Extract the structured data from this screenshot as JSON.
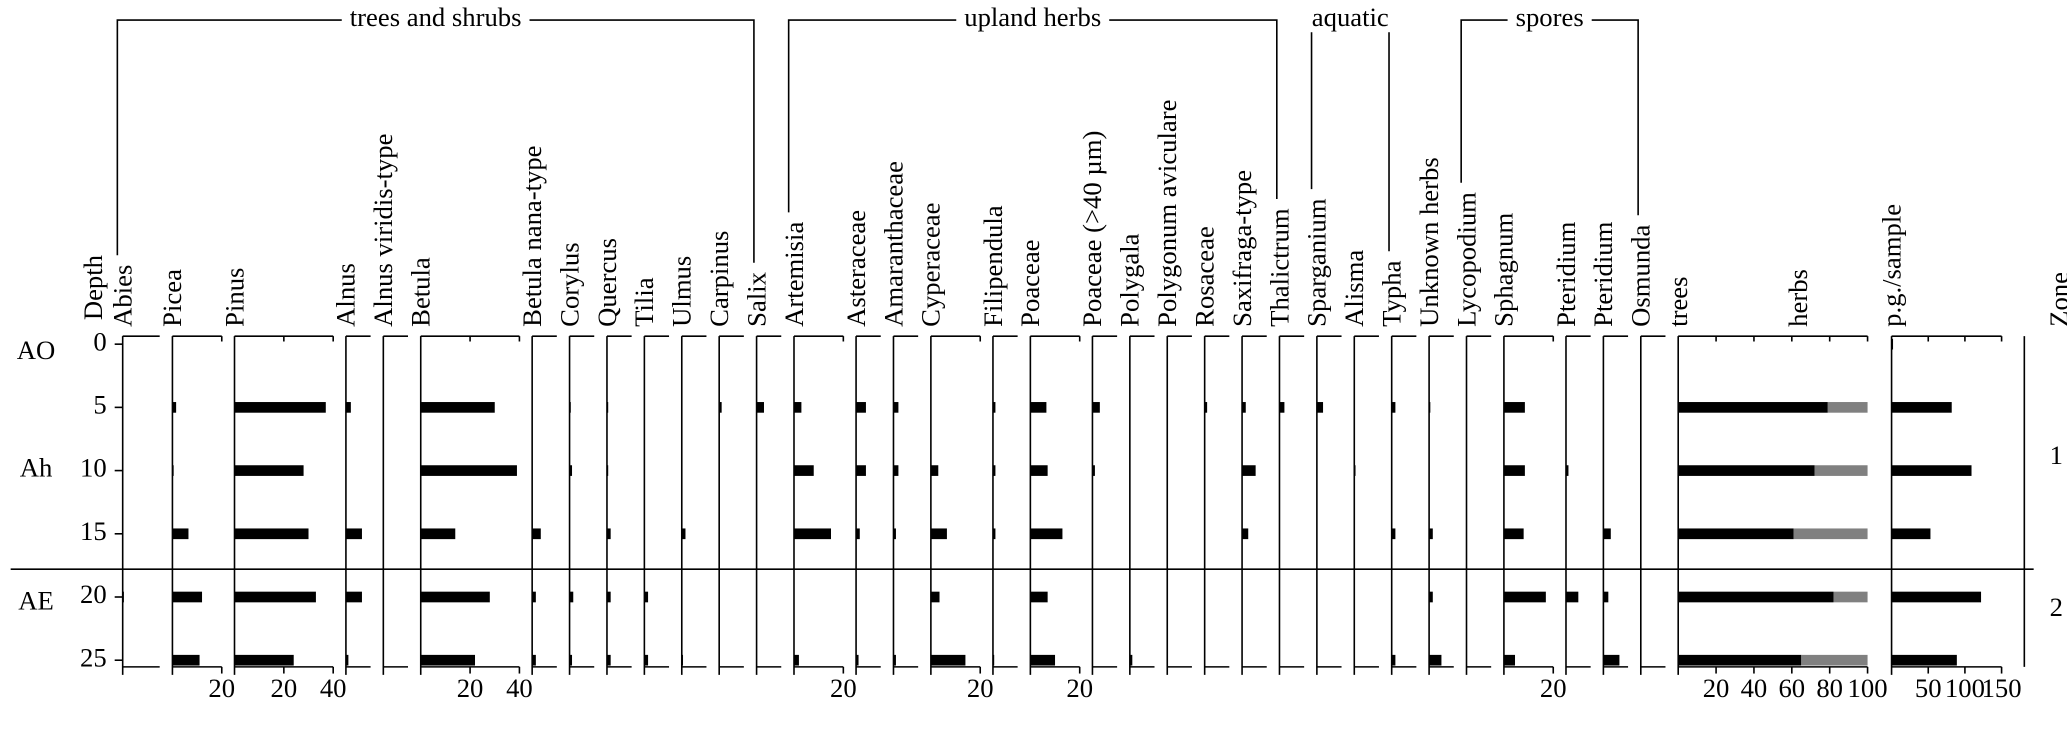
{
  "chart_data": {
    "type": "pollen-diagram",
    "ylabel": "Depth",
    "ylim": [
      0,
      25
    ],
    "yticks": [
      0,
      5,
      10,
      15,
      20,
      25
    ],
    "depths": [
      0,
      5,
      10,
      15,
      20,
      25
    ],
    "color": "#000000",
    "horizons": [
      "AO",
      "Ah",
      "AE"
    ],
    "zones": {
      "title": "Zone",
      "labels": [
        "1",
        "2"
      ],
      "boundaries": [
        17.8
      ]
    },
    "groups": [
      {
        "name": "trees and shrubs",
        "taxa": [
          {
            "name": "Abies",
            "xlim": [
              0,
              15
            ],
            "values": [
              null,
              null,
              null,
              null,
              0.5,
              null
            ]
          },
          {
            "name": "Picea",
            "xlim": [
              0,
              20
            ],
            "xticks": [
              20
            ],
            "values": [
              null,
              1.5,
              0.5,
              6.5,
              12,
              11
            ]
          },
          {
            "name": "Pinus",
            "xlim": [
              0,
              40
            ],
            "xticks": [
              20,
              40
            ],
            "values": [
              null,
              37,
              28,
              30,
              33,
              24
            ]
          },
          {
            "name": "Alnus",
            "xlim": [
              0,
              10
            ],
            "values": [
              null,
              2,
              null,
              6.5,
              6.5,
              1
            ]
          },
          {
            "name": "Alnus viridis-type",
            "xlim": [
              0,
              10
            ],
            "values": [
              null,
              null,
              null,
              null,
              null,
              null
            ]
          },
          {
            "name": "Betula",
            "xlim": [
              0,
              40
            ],
            "xticks": [
              20,
              40
            ],
            "values": [
              null,
              30,
              39,
              14,
              28,
              22
            ]
          },
          {
            "name": "Betula nana-type",
            "xlim": [
              0,
              10
            ],
            "values": [
              null,
              null,
              null,
              3.5,
              1.5,
              1.5
            ]
          },
          {
            "name": "Corylus",
            "xlim": [
              0,
              10
            ],
            "values": [
              null,
              0.5,
              1,
              null,
              1.5,
              1
            ]
          },
          {
            "name": "Quercus",
            "xlim": [
              0,
              10
            ],
            "values": [
              null,
              0.5,
              0.5,
              1.5,
              1.5,
              1.5
            ]
          },
          {
            "name": "Tilia",
            "xlim": [
              0,
              10
            ],
            "values": [
              null,
              null,
              null,
              null,
              1.5,
              1.5
            ]
          },
          {
            "name": "Ulmus",
            "xlim": [
              0,
              10
            ],
            "values": [
              null,
              null,
              null,
              1.5,
              null,
              0.5
            ]
          },
          {
            "name": "Carpinus",
            "xlim": [
              0,
              10
            ],
            "values": [
              null,
              1,
              null,
              null,
              null,
              null
            ]
          },
          {
            "name": "Salix",
            "xlim": [
              0,
              10
            ],
            "values": [
              null,
              3,
              null,
              null,
              null,
              null
            ]
          }
        ]
      },
      {
        "name": "upland herbs",
        "taxa": [
          {
            "name": "Artemisia",
            "xlim": [
              0,
              20
            ],
            "xticks": [
              20
            ],
            "values": [
              null,
              3,
              8,
              15,
              null,
              2
            ]
          },
          {
            "name": "Asteraceae",
            "xlim": [
              0,
              10
            ],
            "values": [
              null,
              4,
              4,
              1.5,
              null,
              1
            ]
          },
          {
            "name": "Amaranthaceae",
            "xlim": [
              0,
              10
            ],
            "values": [
              null,
              2,
              2,
              1,
              null,
              1
            ]
          },
          {
            "name": "Cyperaceae",
            "xlim": [
              0,
              20
            ],
            "xticks": [
              20
            ],
            "values": [
              null,
              null,
              3,
              6.5,
              3.5,
              14
            ]
          },
          {
            "name": "Filipendula",
            "xlim": [
              0,
              10
            ],
            "values": [
              null,
              1,
              1,
              1,
              null,
              0.5
            ]
          },
          {
            "name": "Poaceae",
            "xlim": [
              0,
              20
            ],
            "xticks": [
              20
            ],
            "values": [
              null,
              6.5,
              7,
              13,
              7,
              10
            ]
          },
          {
            "name": "Poaceae (>40 µm)",
            "xlim": [
              0,
              10
            ],
            "values": [
              null,
              3,
              1,
              null,
              null,
              null
            ]
          },
          {
            "name": "Polygala",
            "xlim": [
              0,
              10
            ],
            "values": [
              null,
              null,
              null,
              null,
              null,
              1
            ]
          },
          {
            "name": "Polygonum aviculare",
            "xlim": [
              0,
              10
            ],
            "values": [
              null,
              null,
              null,
              null,
              null,
              null
            ]
          },
          {
            "name": "Rosaceae",
            "xlim": [
              0,
              10
            ],
            "values": [
              null,
              1,
              null,
              null,
              null,
              null
            ]
          },
          {
            "name": "Saxifraga-type",
            "xlim": [
              0,
              10
            ],
            "values": [
              null,
              1.5,
              5.5,
              2.5,
              null,
              null
            ]
          },
          {
            "name": "Thalictrum",
            "xlim": [
              0,
              10
            ],
            "values": [
              null,
              2,
              null,
              null,
              null,
              null
            ]
          }
        ]
      },
      {
        "name": "aquatic",
        "taxa": [
          {
            "name": "Sparganium",
            "xlim": [
              0,
              10
            ],
            "values": [
              null,
              2.5,
              null,
              null,
              null,
              null
            ]
          },
          {
            "name": "Alisma",
            "xlim": [
              0,
              10
            ],
            "values": [
              null,
              null,
              0.5,
              null,
              null,
              null
            ]
          },
          {
            "name": "Typha",
            "xlim": [
              0,
              10
            ],
            "values": [
              null,
              1.5,
              null,
              1.5,
              null,
              1.5
            ]
          }
        ]
      },
      {
        "taxa": [
          {
            "name": "Unknown herbs",
            "xlim": [
              0,
              10
            ],
            "values": [
              null,
              0.5,
              null,
              1.5,
              1.5,
              5
            ]
          }
        ]
      },
      {
        "name": "spores",
        "taxa": [
          {
            "name": "Lycopodium",
            "xlim": [
              0,
              10
            ],
            "values": [
              null,
              null,
              null,
              null,
              null,
              null
            ]
          },
          {
            "name": "Sphagnum",
            "xlim": [
              0,
              20
            ],
            "xticks": [
              20
            ],
            "values": [
              null,
              8.5,
              8.5,
              8,
              17,
              4.5
            ]
          },
          {
            "name": "Pteridium",
            "xlim": [
              0,
              10
            ],
            "values": [
              null,
              null,
              1,
              null,
              5,
              null
            ]
          },
          {
            "name": "Pteridium",
            "xlim": [
              0,
              10
            ],
            "values": [
              null,
              null,
              null,
              3,
              2,
              6.5
            ]
          },
          {
            "name": "Osmunda",
            "xlim": [
              0,
              10
            ],
            "values": [
              null,
              null,
              null,
              null,
              null,
              null
            ]
          }
        ]
      }
    ],
    "sums": {
      "xlim": [
        0,
        100
      ],
      "xticks": [
        20,
        40,
        60,
        80,
        100
      ],
      "series": [
        {
          "name": "trees",
          "color": "#000000",
          "values": [
            null,
            79,
            72,
            61,
            82,
            65
          ]
        },
        {
          "name": "herbs",
          "color": "#808080",
          "values": [
            null,
            21,
            28,
            39,
            18,
            35
          ]
        }
      ]
    },
    "concentration": {
      "name": "p.g./sample",
      "xlim": [
        0,
        150
      ],
      "xticks": [
        50,
        100,
        150
      ],
      "values": [
        2,
        82,
        109,
        53,
        122,
        89
      ]
    }
  }
}
